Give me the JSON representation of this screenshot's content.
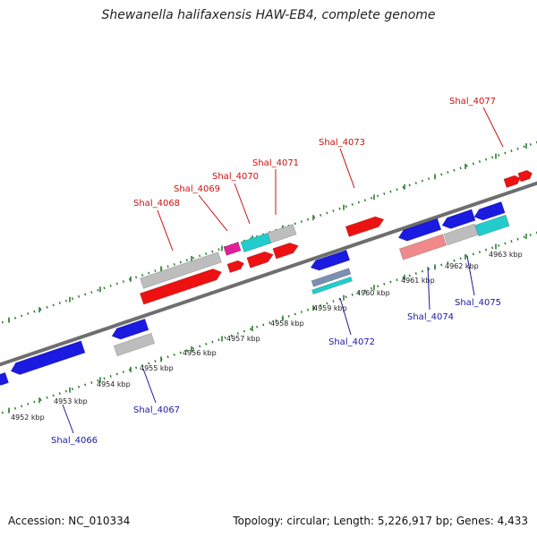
{
  "title": "Shewanella halifaxensis HAW-EB4, complete genome",
  "accession_label": "Accession: NC_010334",
  "topology_label": "Topology: circular; Length: 5,226,917 bp; Genes: 4,433",
  "colors": {
    "backbone": "#6e6e6e",
    "tick_dots": "#2e7d32",
    "forward_label": "#cc1111",
    "reverse_label": "#1a1aa0",
    "red": "#ee1111",
    "blue": "#1a1ae0",
    "gray": "#bdbdbd",
    "cyan": "#22cccc",
    "magenta": "#e0209a",
    "salmon": "#f08a8a"
  },
  "scale_ticks": [
    "4952 kbp",
    "4953 kbp",
    "4954 kbp",
    "4955 kbp",
    "4956 kbp",
    "4957 kbp",
    "4958 kbp",
    "4959 kbp",
    "4960 kbp",
    "4961 kbp",
    "4962 kbp",
    "4963 kbp"
  ],
  "forward_genes": [
    "Shal_4068",
    "Shal_4069",
    "Shal_4070",
    "Shal_4071",
    "Shal_4073",
    "Shal_4077"
  ],
  "reverse_genes": [
    "Shal_4066",
    "Shal_4067",
    "Shal_4072",
    "Shal_4074",
    "Shal_4075"
  ]
}
